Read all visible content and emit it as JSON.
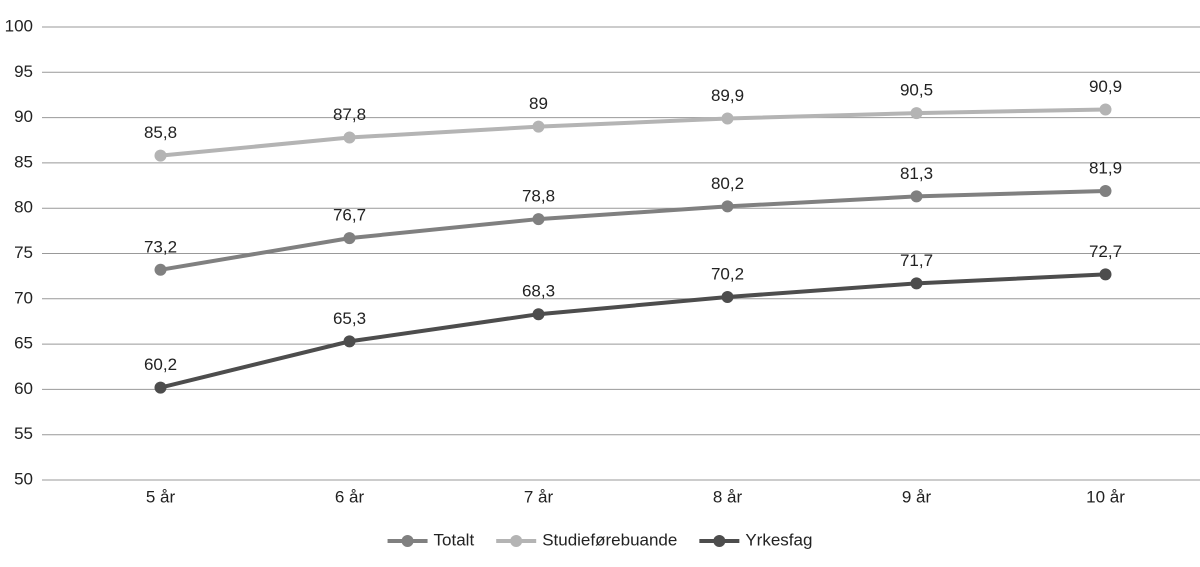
{
  "chart_data": {
    "type": "line",
    "categories": [
      "5 år",
      "6 år",
      "7 år",
      "8 år",
      "9 år",
      "10 år"
    ],
    "series": [
      {
        "name": "Totalt",
        "color": "#808080",
        "values": [
          73.2,
          76.7,
          78.8,
          80.2,
          81.3,
          81.9
        ],
        "value_labels": [
          "73,2",
          "76,7",
          "78,8",
          "80,2",
          "81,3",
          "81,9"
        ]
      },
      {
        "name": "Studieførebuande",
        "color": "#b4b4b4",
        "values": [
          85.8,
          87.8,
          89,
          89.9,
          90.5,
          90.9
        ],
        "value_labels": [
          "85,8",
          "87,8",
          "89",
          "89,9",
          "90,5",
          "90,9"
        ]
      },
      {
        "name": "Yrkesfag",
        "color": "#4d4d4d",
        "values": [
          60.2,
          65.3,
          68.3,
          70.2,
          71.7,
          72.7
        ],
        "value_labels": [
          "60,2",
          "65,3",
          "68,3",
          "70,2",
          "71,7",
          "72,7"
        ]
      }
    ],
    "ylim": [
      50,
      100
    ],
    "yticks": [
      50,
      55,
      60,
      65,
      70,
      75,
      80,
      85,
      90,
      95,
      100
    ],
    "grid": true,
    "legend": "bottom"
  }
}
